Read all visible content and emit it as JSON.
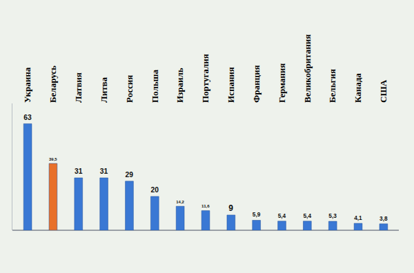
{
  "chart_data": {
    "type": "bar",
    "categories": [
      "Украина",
      "Беларусь",
      "Латвия",
      "Литва",
      "Россия",
      "Польша",
      "Израиль",
      "Португалия",
      "Испания",
      "Франция",
      "Германия",
      "Великобритания",
      "Бельгия",
      "Канада",
      "США"
    ],
    "values": [
      63,
      39.5,
      31,
      31,
      29,
      20,
      14.2,
      11.6,
      9,
      5.9,
      5.4,
      5.4,
      5.3,
      4.1,
      3.8
    ],
    "value_labels": [
      "63",
      "39,5",
      "31",
      "31",
      "29",
      "20",
      "14,2",
      "11,6",
      "9",
      "5,9",
      "5,4",
      "5,4",
      "5,3",
      "4,1",
      "3,8"
    ],
    "colors": [
      "#3a78d4",
      "#e8702a",
      "#3a78d4",
      "#3a78d4",
      "#3a78d4",
      "#3a78d4",
      "#3a78d4",
      "#3a78d4",
      "#3a78d4",
      "#3a78d4",
      "#3a78d4",
      "#3a78d4",
      "#3a78d4",
      "#3a78d4",
      "#3a78d4"
    ],
    "ylim": [
      0,
      75
    ],
    "yticks": [
      0
    ],
    "data_labels": true,
    "tick_labels": "x",
    "grid": false
  }
}
